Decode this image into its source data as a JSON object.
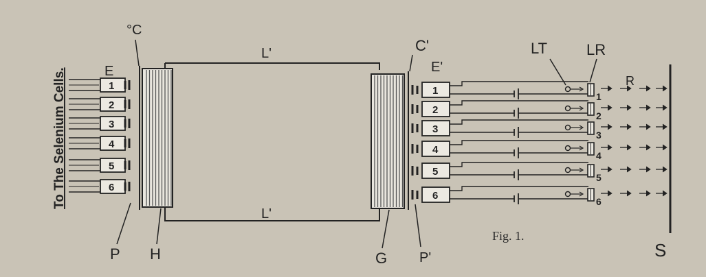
{
  "labels": {
    "side_text": "To The Selenium Cells.",
    "E": "E",
    "C": "°C",
    "L_top": "L'",
    "C_prime": "C'",
    "E_prime": "E'",
    "LT": "LT",
    "LR": "LR",
    "R": "R",
    "L_bottom": "L'",
    "P": "P",
    "H": "H",
    "G": "G",
    "P_prime": "P'",
    "S": "S",
    "caption": "Fig. 1."
  },
  "left_cells": [
    "1",
    "2",
    "3",
    "4",
    "5",
    "6"
  ],
  "right_cells": [
    "1",
    "2",
    "3",
    "4",
    "5",
    "6"
  ],
  "output_numbers": [
    "1",
    "2",
    "3",
    "4",
    "5",
    "6"
  ],
  "colors": {
    "background": "#c9c3b6",
    "ink": "#222222",
    "coil": "#555555"
  }
}
